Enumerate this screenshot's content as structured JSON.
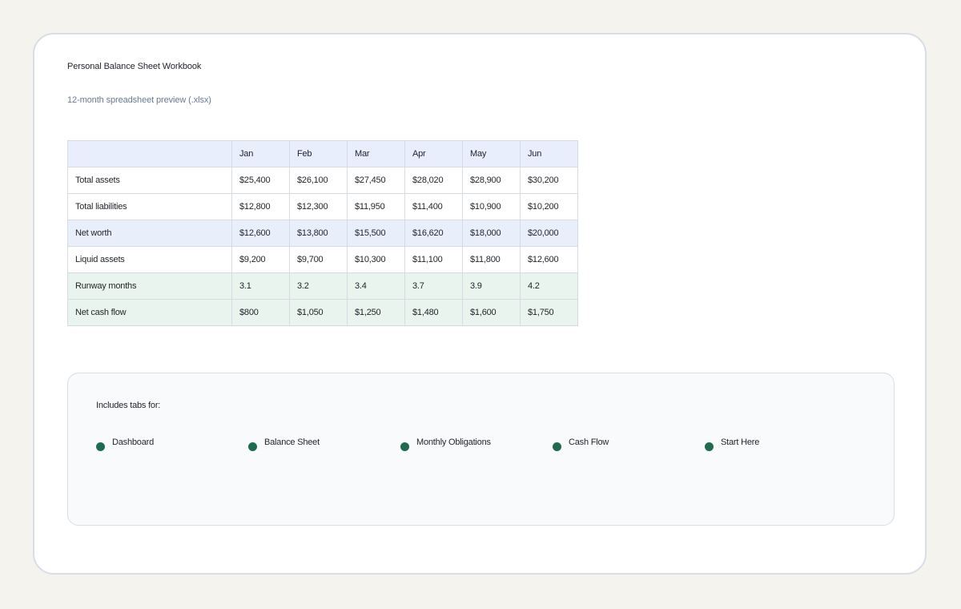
{
  "header": {
    "title": "Personal Balance Sheet Workbook",
    "subtitle": "12-month spreadsheet preview (.xlsx)"
  },
  "table": {
    "columns": [
      "",
      "Jan",
      "Feb",
      "Mar",
      "Apr",
      "May",
      "Jun"
    ],
    "rows": [
      {
        "label": "Total assets",
        "values": [
          "$25,400",
          "$26,100",
          "$27,450",
          "$28,020",
          "$28,900",
          "$30,200"
        ]
      },
      {
        "label": "Total liabilities",
        "values": [
          "$12,800",
          "$12,300",
          "$11,950",
          "$11,400",
          "$10,900",
          "$10,200"
        ]
      },
      {
        "label": "Net worth",
        "values": [
          "$12,600",
          "$13,800",
          "$15,500",
          "$16,620",
          "$18,000",
          "$20,000"
        ]
      },
      {
        "label": "Liquid assets",
        "values": [
          "$9,200",
          "$9,700",
          "$10,300",
          "$11,100",
          "$11,800",
          "$12,600"
        ]
      },
      {
        "label": "Runway months",
        "values": [
          "3.1",
          "3.2",
          "3.4",
          "3.7",
          "3.9",
          "4.2"
        ]
      },
      {
        "label": "Net cash flow",
        "values": [
          "$800",
          "$1,050",
          "$1,250",
          "$1,480",
          "$1,600",
          "$1,750"
        ]
      }
    ]
  },
  "tabs_panel": {
    "heading": "Includes tabs for:",
    "items": [
      "Dashboard",
      "Balance Sheet",
      "Monthly Obligations",
      "Cash Flow",
      "Start Here"
    ]
  },
  "colors": {
    "accent_dot": "#1f6b4f",
    "header_fill": "#e8eefb",
    "highlight_row": "#e8effb",
    "green_row": "#e8f4ed"
  }
}
